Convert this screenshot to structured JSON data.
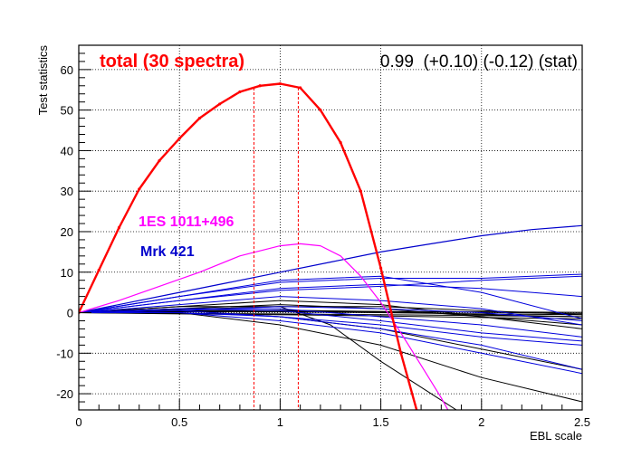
{
  "chart_data": {
    "type": "line",
    "xlabel": "EBL scale",
    "ylabel": "Test statistics",
    "xlim": [
      0,
      2.5
    ],
    "ylim": [
      -24,
      66
    ],
    "grid": true,
    "x_ticks": [
      "0",
      "0.5",
      "1",
      "1.5",
      "2",
      "2.5"
    ],
    "y_ticks": [
      "-20",
      "-10",
      "0",
      "10",
      "20",
      "30",
      "40",
      "50",
      "60"
    ],
    "annotations": {
      "total": "total (30 spectra)",
      "result": "0.99  (+0.10) (-0.12) (stat)",
      "label_1es": "1ES 1011+496",
      "label_mrk": "Mrk 421"
    },
    "colors": {
      "total": "#ff0000",
      "es1011": "#ff00ff",
      "mrk421": "#0000cc",
      "other_blue": "#0000dd",
      "other_black": "#000000"
    },
    "total_points": {
      "x": [
        0,
        0.1,
        0.2,
        0.3,
        0.4,
        0.5,
        0.6,
        0.7,
        0.8,
        0.9,
        1.0,
        1.1,
        1.2,
        1.3,
        1.4,
        1.5,
        1.6,
        1.7
      ],
      "y": [
        0,
        10.5,
        21,
        30.5,
        37.5,
        43,
        48,
        51.5,
        54.5,
        56,
        56.5,
        55.5,
        50,
        42,
        30,
        11,
        -10,
        -28
      ]
    },
    "total_error_lines": {
      "x": [
        0.87,
        1.09
      ],
      "y": [
        55.5,
        55.5
      ]
    },
    "es1011_points": {
      "x": [
        0,
        0.2,
        0.4,
        0.6,
        0.8,
        1.0,
        1.1,
        1.2,
        1.3,
        1.4,
        1.5,
        1.6,
        1.7,
        1.8,
        1.9
      ],
      "y": [
        0,
        3,
        6.5,
        10,
        14,
        16.5,
        17,
        16.5,
        14,
        9,
        2.5,
        -5,
        -13,
        -21,
        -30
      ]
    },
    "mrk421_points": {
      "x": [
        0,
        0.25,
        0.5,
        0.75,
        1.0,
        1.25,
        1.5,
        1.75,
        2.0,
        2.25,
        2.5
      ],
      "y": [
        0,
        2.5,
        5,
        7.5,
        10,
        12.5,
        15,
        17,
        19,
        20.5,
        21.5
      ]
    },
    "blue_series": [
      {
        "x": [
          0,
          0.5,
          1.0,
          1.5,
          2.0,
          2.5
        ],
        "y": [
          0,
          4,
          7.5,
          8.5,
          8.5,
          9.5
        ]
      },
      {
        "x": [
          0,
          0.5,
          1.0,
          1.5,
          2.0,
          2.5
        ],
        "y": [
          0,
          3,
          5.5,
          6.5,
          8,
          9
        ]
      },
      {
        "x": [
          0,
          0.5,
          1.0,
          1.5,
          2.0,
          2.5
        ],
        "y": [
          0,
          4,
          8,
          9,
          5,
          -1.5
        ]
      },
      {
        "x": [
          0,
          0.5,
          1.0,
          1.5,
          2.0,
          2.5
        ],
        "y": [
          0,
          3,
          6,
          7,
          6,
          4
        ]
      },
      {
        "x": [
          0,
          0.5,
          1.0,
          1.5,
          2.0,
          2.5
        ],
        "y": [
          0,
          2,
          4,
          3,
          1,
          -3
        ]
      },
      {
        "x": [
          0,
          0.5,
          1.0,
          1.5,
          2.0,
          2.5
        ],
        "y": [
          0,
          1,
          1,
          -1,
          -3,
          -6
        ]
      },
      {
        "x": [
          0,
          0.5,
          1.0,
          1.5,
          2.0,
          2.5
        ],
        "y": [
          0,
          0.5,
          -1,
          -3,
          -6,
          -8
        ]
      },
      {
        "x": [
          0,
          0.5,
          1.0,
          1.5,
          2.0,
          2.5
        ],
        "y": [
          0,
          0,
          -2,
          -5,
          -10,
          -15
        ]
      },
      {
        "x": [
          0,
          0.5,
          1.0,
          1.5,
          2.0,
          2.5
        ],
        "y": [
          0,
          1,
          0.5,
          -2,
          -5,
          -7
        ]
      },
      {
        "x": [
          0,
          0.5,
          1.0,
          1.5,
          2.0,
          2.5
        ],
        "y": [
          0,
          0,
          -1,
          -4,
          -8,
          -14
        ]
      },
      {
        "x": [
          0,
          0.5,
          1.0,
          1.5,
          2.0,
          2.5
        ],
        "y": [
          0,
          0.5,
          1.5,
          1,
          0,
          -2
        ]
      }
    ],
    "black_series": [
      {
        "x": [
          0,
          0.5,
          1.0,
          1.25,
          1.5,
          1.75,
          2.0
        ],
        "y": [
          0,
          1.5,
          1.5,
          -3,
          -12,
          -20,
          -28
        ]
      },
      {
        "x": [
          0,
          0.5,
          1.0,
          1.5,
          2.0,
          2.5
        ],
        "y": [
          0,
          0,
          -3,
          -8,
          -16,
          -22
        ]
      },
      {
        "x": [
          0,
          0.5,
          1.0,
          1.5,
          2.0,
          2.5
        ],
        "y": [
          0,
          0.5,
          -1,
          -4,
          -9,
          -14
        ]
      },
      {
        "x": [
          0,
          0.5,
          1.0,
          1.5,
          2.0,
          2.5
        ],
        "y": [
          0,
          1,
          2,
          1,
          -1,
          -3
        ]
      },
      {
        "x": [
          0,
          0.5,
          1.0,
          1.5,
          2.0,
          2.5
        ],
        "y": [
          0,
          0.2,
          0.2,
          0,
          -0.3,
          -0.5
        ]
      },
      {
        "x": [
          0,
          0.5,
          1.0,
          1.5,
          2.0,
          2.5
        ],
        "y": [
          0,
          0.5,
          0.5,
          0.3,
          0.1,
          -0.2
        ]
      },
      {
        "x": [
          0,
          0.5,
          1.0,
          1.5,
          2.0,
          2.5
        ],
        "y": [
          0,
          -0.3,
          -0.5,
          -0.8,
          -1.2,
          -1.5
        ]
      },
      {
        "x": [
          0,
          0.5,
          1.0,
          1.5,
          2.0,
          2.5
        ],
        "y": [
          0,
          0.3,
          0.3,
          0.2,
          0.2,
          0.1
        ]
      },
      {
        "x": [
          0,
          0.5,
          1.0,
          1.5,
          2.0,
          2.5
        ],
        "y": [
          0,
          -0.2,
          -0.3,
          -0.5,
          -0.7,
          -1
        ]
      },
      {
        "x": [
          0,
          0.5,
          1.0,
          1.5,
          2.0,
          2.5
        ],
        "y": [
          0,
          0.8,
          1.5,
          1.5,
          0.5,
          -0.5
        ]
      },
      {
        "x": [
          0,
          0.5,
          1.0,
          1.5,
          2.0,
          2.5
        ],
        "y": [
          0,
          1.5,
          3,
          2,
          -1,
          -4
        ]
      },
      {
        "x": [
          0,
          0.5,
          1.0,
          1.5,
          2.0,
          2.5
        ],
        "y": [
          0,
          0.4,
          0.6,
          0.3,
          -0.5,
          -1
        ]
      }
    ]
  }
}
